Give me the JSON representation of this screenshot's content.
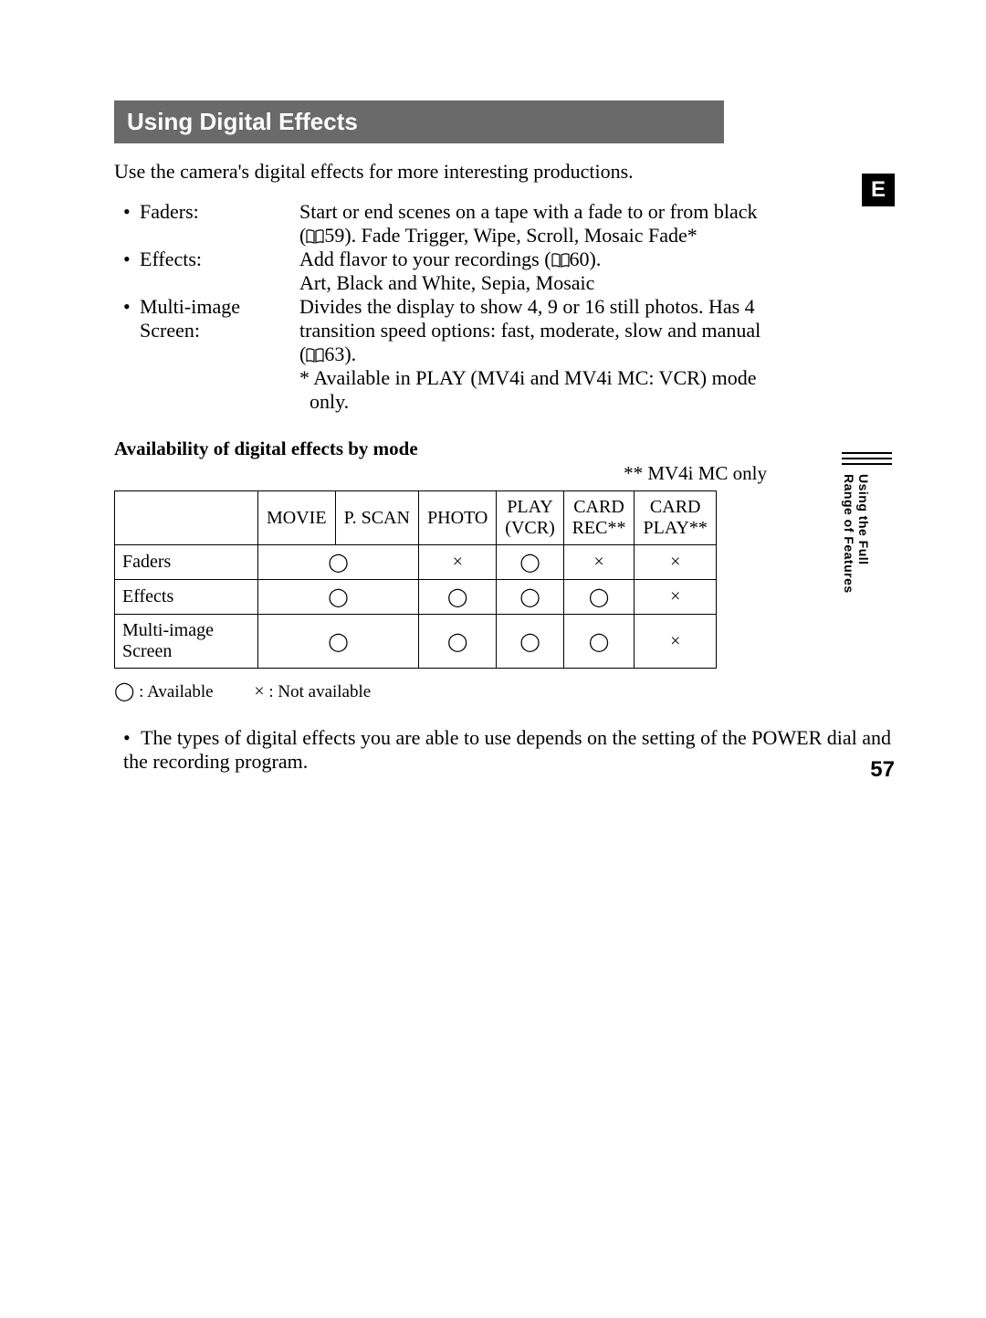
{
  "title": "Using Digital Effects",
  "intro": "Use the camera's digital effects for more interesting productions.",
  "badge": "E",
  "items": [
    {
      "term": "Faders:",
      "lines": [
        {
          "pre": "Start or end scenes on a tape with a fade to or from black"
        },
        {
          "pre": "(",
          "ref": "59",
          "post": "). Fade Trigger, Wipe, Scroll, Mosaic Fade*"
        }
      ]
    },
    {
      "term": "Effects:",
      "lines": [
        {
          "pre": "Add flavor to your recordings (",
          "ref": "60",
          "post": ")."
        },
        {
          "pre": "Art, Black and White, Sepia, Mosaic"
        }
      ]
    },
    {
      "term": "Multi-image Screen:",
      "lines": [
        {
          "pre": "Divides the display to show 4, 9 or 16 still photos. Has 4"
        },
        {
          "pre": "transition speed options: fast, moderate, slow and manual"
        },
        {
          "pre": "(",
          "ref": "63",
          "post": ")."
        },
        {
          "pre": "* Available in PLAY (MV4i and MV4i MC: VCR) mode"
        },
        {
          "pre": "  only."
        }
      ]
    }
  ],
  "subhead": "Availability of digital effects by mode",
  "note_right": "** MV4i MC only",
  "table": {
    "columns": [
      "MOVIE",
      "P. SCAN",
      "PHOTO",
      "PLAY (VCR)",
      "CARD REC**",
      "CARD PLAY**"
    ],
    "rows": [
      {
        "label": "Faders",
        "cells": [
          "o",
          "",
          "x",
          "o",
          "x",
          "x"
        ]
      },
      {
        "label": "Effects",
        "cells": [
          "o",
          "",
          "o",
          "o",
          "o",
          "x"
        ]
      },
      {
        "label": "Multi-image Screen",
        "cells": [
          "o",
          "",
          "o",
          "o",
          "o",
          "x"
        ]
      }
    ],
    "merge_col0_into_col1": true
  },
  "legend": {
    "available": ": Available",
    "not_available": ": Not available"
  },
  "final_note": "The types of digital effects you are able to use depends on the setting of the POWER dial and the recording program.",
  "side_tab": {
    "line1": "Using the Full",
    "line2": "Range of Features"
  },
  "page_number": "57",
  "symbols": {
    "o": "◯",
    "x": "×"
  },
  "colors": {
    "title_bg": "#6a6a6a",
    "title_fg": "#ffffff",
    "text": "#000000"
  }
}
